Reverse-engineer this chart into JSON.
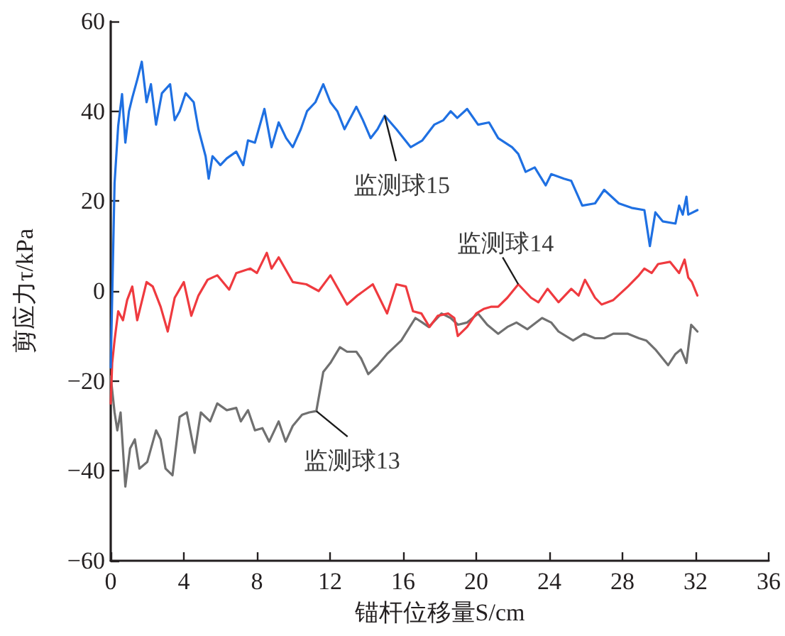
{
  "chart_data": {
    "type": "line",
    "xlabel": "锚杆位移量S/cm",
    "ylabel": "剪应力τ/kPa",
    "xlim": [
      0,
      36
    ],
    "xticks": [
      0,
      4,
      8,
      12,
      16,
      20,
      24,
      28,
      32,
      36
    ],
    "ylim": [
      -60,
      60
    ],
    "yticks": [
      -60,
      -40,
      -20,
      0,
      20,
      40,
      60
    ],
    "grid": false,
    "legend": false,
    "marker": "none",
    "line_style": "solid",
    "series": [
      {
        "name": "监测球13",
        "color": "#707070",
        "x": [
          0,
          0.21,
          0.36,
          0.54,
          0.8,
          1.06,
          1.32,
          1.57,
          2.0,
          2.48,
          2.73,
          3.0,
          3.38,
          3.77,
          4.16,
          4.59,
          4.93,
          5.44,
          5.83,
          6.35,
          6.87,
          7.12,
          7.51,
          7.89,
          8.3,
          8.67,
          9.19,
          9.57,
          9.96,
          10.47,
          10.86,
          11.25,
          11.63,
          12.02,
          12.54,
          12.93,
          13.44,
          13.7,
          14.09,
          14.6,
          15.12,
          15.9,
          16.67,
          17.05,
          17.4,
          18.1,
          18.6,
          19.0,
          19.5,
          20.1,
          20.6,
          21.2,
          21.7,
          22.2,
          22.8,
          23.6,
          24.1,
          24.5,
          25.3,
          25.9,
          26.5,
          27.0,
          27.5,
          28.3,
          28.9,
          29.3,
          29.8,
          30.5,
          30.9,
          31.2,
          31.5,
          31.76,
          32.1
        ],
        "values": [
          -19,
          -27,
          -31,
          -27,
          -43.5,
          -35,
          -33,
          -39.5,
          -38,
          -31,
          -33,
          -39.5,
          -41,
          -28,
          -27,
          -36,
          -27,
          -29,
          -25,
          -26.5,
          -26,
          -29,
          -26.5,
          -31,
          -30.5,
          -33.5,
          -29,
          -33.5,
          -30,
          -27.5,
          -27,
          -26.7,
          -18,
          -16,
          -12.5,
          -13.5,
          -13.5,
          -15,
          -18.5,
          -16.5,
          -14,
          -11,
          -6,
          -7,
          -8,
          -5,
          -6,
          -7.5,
          -7,
          -5,
          -7.5,
          -9.5,
          -8,
          -7,
          -8.5,
          -6,
          -7,
          -9,
          -11,
          -9.5,
          -10.5,
          -10.5,
          -9.5,
          -9.5,
          -10.5,
          -11,
          -13,
          -16.5,
          -14,
          -13,
          -16,
          -7.5,
          -9
        ]
      },
      {
        "name": "监测球14",
        "color": "#ef3a3f",
        "x": [
          0,
          0.08,
          0.21,
          0.41,
          0.67,
          0.9,
          1.18,
          1.45,
          1.96,
          2.3,
          2.73,
          3.12,
          3.5,
          4.0,
          4.41,
          4.8,
          5.3,
          5.83,
          6.48,
          6.87,
          7.64,
          8.0,
          8.54,
          8.8,
          9.19,
          9.96,
          10.7,
          11.38,
          12.02,
          12.93,
          13.5,
          14.34,
          15.12,
          15.63,
          16.15,
          16.54,
          17.0,
          17.44,
          17.9,
          18.47,
          18.8,
          18.99,
          19.5,
          20.0,
          20.4,
          20.8,
          21.2,
          21.7,
          22.3,
          23.0,
          23.4,
          23.9,
          24.5,
          25.2,
          25.6,
          25.95,
          26.5,
          26.86,
          27.5,
          28.3,
          28.9,
          29.2,
          29.6,
          29.95,
          30.6,
          31.1,
          31.4,
          31.6,
          31.8,
          32.1
        ],
        "values": [
          -25,
          -16,
          -11,
          -4.5,
          -6.5,
          -2,
          1,
          -6.5,
          2,
          1,
          -3.5,
          -9,
          -1.5,
          2,
          -5.5,
          -1,
          2.5,
          3.5,
          0.3,
          4,
          5,
          4,
          8.5,
          5,
          7.5,
          2,
          1.5,
          0,
          3.5,
          -3,
          -1,
          1.5,
          -5,
          1.5,
          1,
          -4.5,
          -5,
          -8,
          -5.5,
          -5,
          -6,
          -10,
          -8,
          -5,
          -4,
          -3.5,
          -3.5,
          -1.5,
          1.5,
          -1.5,
          -2.5,
          0.5,
          -2.5,
          0.5,
          -1,
          2.5,
          -1.5,
          -3,
          -2,
          1,
          3.5,
          5,
          4,
          6,
          6.5,
          4,
          7,
          3,
          2,
          -1
        ]
      },
      {
        "name": "监测球15",
        "color": "#1f70e2",
        "x": [
          0,
          0.21,
          0.41,
          0.62,
          0.8,
          1.0,
          1.18,
          1.45,
          1.7,
          1.96,
          2.2,
          2.48,
          2.8,
          3.25,
          3.5,
          3.77,
          4.1,
          4.54,
          4.8,
          5.19,
          5.36,
          5.57,
          6.0,
          6.35,
          6.87,
          7.25,
          7.51,
          7.89,
          8.41,
          8.8,
          9.19,
          9.6,
          9.96,
          10.4,
          10.74,
          11.2,
          11.63,
          12.02,
          12.4,
          12.79,
          13.44,
          13.8,
          14.22,
          14.6,
          14.99,
          15.63,
          16.41,
          17.05,
          17.7,
          18.2,
          18.6,
          18.96,
          19.5,
          20.1,
          20.7,
          21.2,
          21.96,
          22.3,
          22.7,
          23.2,
          23.8,
          24.1,
          24.8,
          25.2,
          25.8,
          26.5,
          27.0,
          27.8,
          28.5,
          29.2,
          29.5,
          29.8,
          30.2,
          30.9,
          31.1,
          31.3,
          31.5,
          31.6,
          32.1
        ],
        "values": [
          -17,
          24,
          36.8,
          43.8,
          33,
          40,
          43,
          47,
          51,
          42,
          46,
          37,
          44,
          46,
          38,
          40,
          44,
          42,
          36,
          30,
          25,
          30,
          28,
          29.5,
          31,
          28,
          33.5,
          33,
          40.5,
          32,
          37.5,
          34,
          32,
          36,
          40,
          42,
          46,
          42,
          40,
          36,
          41,
          38,
          34,
          36,
          39,
          36,
          32,
          33.5,
          37,
          38,
          40,
          38.5,
          40.5,
          37,
          37.5,
          34,
          32,
          30.5,
          26.5,
          27.5,
          23.5,
          26,
          25,
          24.5,
          19,
          19.5,
          22.5,
          19.5,
          18.5,
          18,
          10,
          17.5,
          15.5,
          15,
          19,
          17,
          21,
          17,
          18
        ]
      }
    ]
  }
}
